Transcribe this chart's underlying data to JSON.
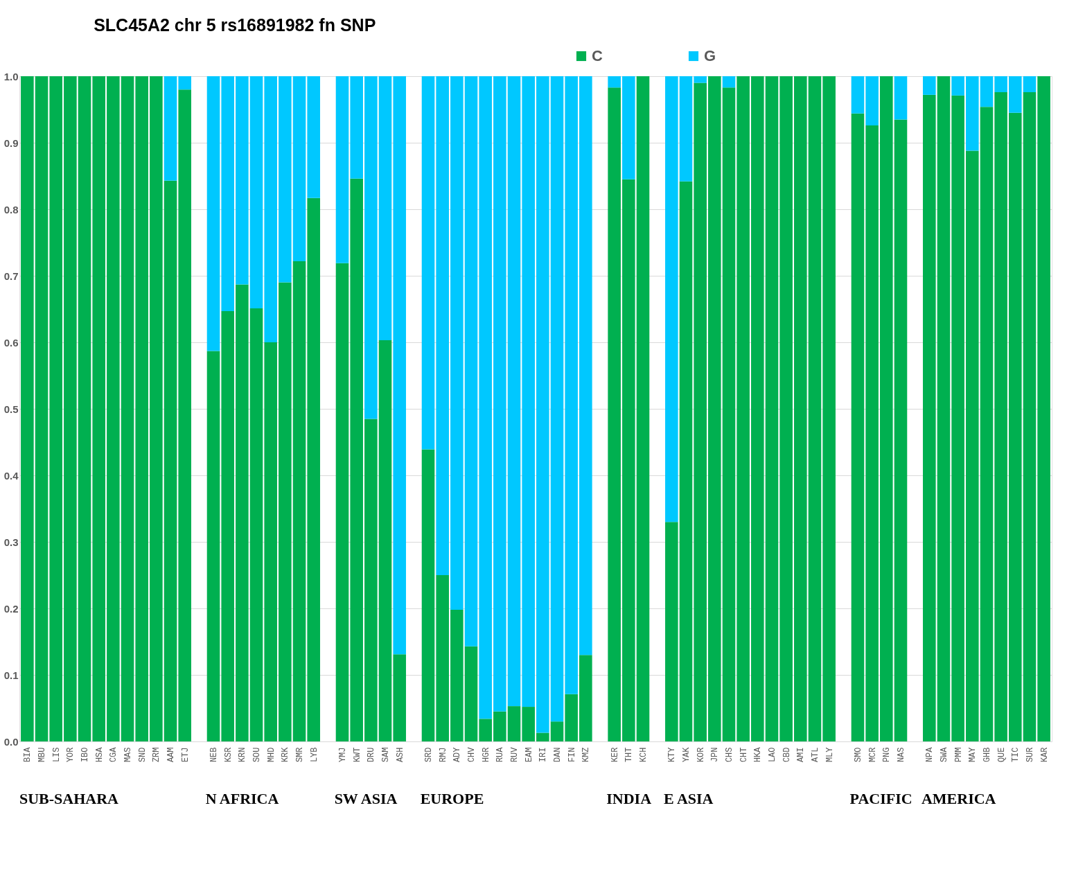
{
  "chart_data": {
    "type": "bar",
    "stacked": true,
    "title": "SLC45A2  chr 5 rs16891982     fn SNP",
    "categories": [
      "BIA",
      "MBU",
      "LIS",
      "YOR",
      "IBO",
      "HSA",
      "CGA",
      "MAS",
      "SND",
      "ZRM",
      "AAM",
      "ETJ",
      null,
      "NEB",
      "KSR",
      "KRN",
      "SOU",
      "MHD",
      "KRK",
      "SMR",
      "LYB",
      null,
      "YMJ",
      "KWT",
      "DRU",
      "SAM",
      "ASH",
      null,
      "SRD",
      "RMJ",
      "ADY",
      "CHV",
      "HGR",
      "RUA",
      "RUV",
      "EAM",
      "IRI",
      "DAN",
      "FIN",
      "KMZ",
      null,
      "KER",
      "THT",
      "KCH",
      null,
      "KTY",
      "YAK",
      "KOR",
      "JPN",
      "CHS",
      "CHT",
      "HKA",
      "LAO",
      "CBD",
      "AMI",
      "ATL",
      "MLY",
      null,
      "SMO",
      "MCR",
      "PNG",
      "NAS",
      null,
      "NPA",
      "SWA",
      "PMM",
      "MAY",
      "GHB",
      "QUE",
      "TIC",
      "SUR",
      "KAR"
    ],
    "series": [
      {
        "name": "C",
        "color": "#00b050",
        "values": [
          1,
          1,
          1,
          1,
          1,
          1,
          1,
          1,
          1,
          1,
          0.843,
          0.98,
          null,
          0.587,
          0.647,
          0.687,
          0.651,
          0.6,
          0.69,
          0.722,
          0.817,
          null,
          0.719,
          0.846,
          0.485,
          0.603,
          0.131,
          null,
          0.439,
          0.25,
          0.198,
          0.143,
          0.034,
          0.045,
          0.053,
          0.052,
          0.013,
          0.03,
          0.071,
          0.13,
          null,
          0.983,
          0.845,
          1,
          null,
          0.33,
          0.842,
          0.99,
          1,
          0.983,
          1,
          1,
          1,
          1,
          1,
          1,
          1,
          null,
          0.944,
          0.926,
          1,
          0.935,
          null,
          0.972,
          1,
          0.971,
          0.888,
          0.954,
          0.976,
          0.945,
          0.976,
          1
        ]
      },
      {
        "name": "G",
        "color": "#00c8ff",
        "values": [
          0,
          0,
          0,
          0,
          0,
          0,
          0,
          0,
          0,
          0,
          0.157,
          0.02,
          null,
          0.413,
          0.353,
          0.313,
          0.349,
          0.4,
          0.31,
          0.278,
          0.183,
          null,
          0.281,
          0.154,
          0.515,
          0.397,
          0.869,
          null,
          0.561,
          0.75,
          0.802,
          0.857,
          0.966,
          0.955,
          0.947,
          0.948,
          0.987,
          0.97,
          0.929,
          0.87,
          null,
          0.017,
          0.155,
          0,
          null,
          0.67,
          0.158,
          0.01,
          0,
          0.017,
          0,
          0,
          0,
          0,
          0,
          0,
          0,
          null,
          0.056,
          0.074,
          0,
          0.065,
          null,
          0.028,
          0,
          0.029,
          0.112,
          0.046,
          0.024,
          0.055,
          0.024,
          0
        ]
      }
    ],
    "ylim": [
      0,
      1
    ],
    "yticks": [
      {
        "value": 0,
        "label": "0.0"
      },
      0.1,
      0.2,
      0.3,
      0.4,
      0.5,
      0.6,
      0.7,
      0.8,
      0.9,
      {
        "value": 1,
        "label": "1.0"
      }
    ],
    "grid": "y",
    "legend": "top",
    "annotations": [
      "SUB-SAHARA",
      "N AFRICA",
      "SW ASIA",
      "EUROPE",
      "INDIA",
      "E ASIA",
      "PACIFIC",
      "AMERICA"
    ]
  }
}
